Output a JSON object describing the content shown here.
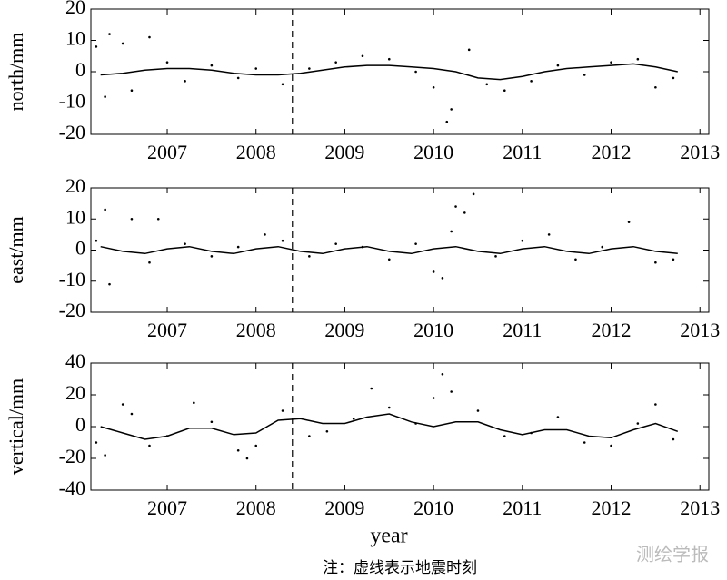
{
  "chart_data": [
    {
      "type": "scatter",
      "y_label": "north/mm",
      "xlim": [
        2006.14,
        2013.1
      ],
      "ylim": [
        -20,
        20
      ],
      "xticks": [
        2007,
        2008,
        2009,
        2010,
        2011,
        2012,
        2013
      ],
      "yticks": [
        -20,
        -10,
        0,
        10,
        20
      ],
      "event_x": 2008.41,
      "color": "#000000",
      "points": {
        "x": [
          2006.2,
          2006.3,
          2006.35,
          2006.5,
          2006.6,
          2006.8,
          2007.0,
          2007.2,
          2007.5,
          2007.8,
          2008.0,
          2008.3,
          2008.6,
          2008.9,
          2009.2,
          2009.5,
          2009.8,
          2010.0,
          2010.15,
          2010.2,
          2010.4,
          2010.6,
          2010.8,
          2011.1,
          2011.4,
          2011.7,
          2012.0,
          2012.3,
          2012.5,
          2012.7
        ],
        "y": [
          8,
          -8,
          12,
          9,
          -6,
          11,
          3,
          -3,
          2,
          -2,
          1,
          -4,
          1,
          3,
          5,
          4,
          0,
          -5,
          -16,
          -12,
          7,
          -4,
          -6,
          -3,
          2,
          -1,
          3,
          4,
          -5,
          -2
        ]
      },
      "trend": {
        "x": [
          2006.25,
          2006.5,
          2006.75,
          2007,
          2007.25,
          2007.5,
          2007.75,
          2008,
          2008.25,
          2008.5,
          2008.75,
          2009,
          2009.25,
          2009.5,
          2009.75,
          2010,
          2010.25,
          2010.5,
          2010.75,
          2011,
          2011.25,
          2011.5,
          2011.75,
          2012,
          2012.25,
          2012.5,
          2012.75
        ],
        "y": [
          -1,
          -0.5,
          0.5,
          1,
          1,
          0.5,
          -0.5,
          -1,
          -1,
          -0.5,
          0.5,
          1.5,
          2,
          2,
          1.5,
          1,
          0,
          -2,
          -2.5,
          -1.5,
          0,
          1,
          1.5,
          2,
          2.5,
          1.5,
          0
        ]
      }
    },
    {
      "type": "scatter",
      "y_label": "east/mm",
      "xlim": [
        2006.14,
        2013.1
      ],
      "ylim": [
        -20,
        20
      ],
      "xticks": [
        2007,
        2008,
        2009,
        2010,
        2011,
        2012,
        2013
      ],
      "yticks": [
        -20,
        -10,
        0,
        10,
        20
      ],
      "event_x": 2008.41,
      "color": "#000000",
      "points": {
        "x": [
          2006.2,
          2006.3,
          2006.35,
          2006.6,
          2006.8,
          2006.9,
          2007.2,
          2007.5,
          2007.8,
          2008.1,
          2008.3,
          2008.6,
          2008.9,
          2009.2,
          2009.5,
          2009.8,
          2010.0,
          2010.1,
          2010.2,
          2010.25,
          2010.35,
          2010.45,
          2010.7,
          2011.0,
          2011.3,
          2011.6,
          2011.9,
          2012.2,
          2012.5,
          2012.7
        ],
        "y": [
          3,
          13,
          -11,
          10,
          -4,
          10,
          2,
          -2,
          1,
          5,
          3,
          -2,
          2,
          1,
          -3,
          2,
          -7,
          -9,
          6,
          14,
          12,
          18,
          -2,
          3,
          5,
          -3,
          1,
          9,
          -4,
          -3
        ]
      },
      "trend": {
        "x": [
          2006.25,
          2006.5,
          2006.75,
          2007,
          2007.25,
          2007.5,
          2007.75,
          2008,
          2008.25,
          2008.5,
          2008.75,
          2009,
          2009.25,
          2009.5,
          2009.75,
          2010,
          2010.25,
          2010.5,
          2010.75,
          2011,
          2011.25,
          2011.5,
          2011.75,
          2012,
          2012.25,
          2012.5,
          2012.75
        ],
        "y": [
          1.1,
          -0.4,
          -1.1,
          0.4,
          1.1,
          -0.4,
          -1.1,
          0.4,
          1.1,
          -0.4,
          -1.1,
          0.4,
          1.1,
          -0.4,
          -1.1,
          0.4,
          1.1,
          -0.4,
          -1.1,
          0.4,
          1.1,
          -0.4,
          -1.1,
          0.4,
          1.1,
          -0.4,
          -1.1
        ]
      }
    },
    {
      "type": "scatter",
      "y_label": "vertical/mm",
      "x_label": "year",
      "xlim": [
        2006.14,
        2013.1
      ],
      "ylim": [
        -40,
        40
      ],
      "xticks": [
        2007,
        2008,
        2009,
        2010,
        2011,
        2012,
        2013
      ],
      "yticks": [
        -40,
        -20,
        0,
        20,
        40
      ],
      "event_x": 2008.41,
      "color": "#000000",
      "points": {
        "x": [
          2006.2,
          2006.3,
          2006.5,
          2006.6,
          2006.8,
          2007.0,
          2007.3,
          2007.5,
          2007.8,
          2007.9,
          2008.0,
          2008.3,
          2008.6,
          2008.8,
          2009.1,
          2009.3,
          2009.5,
          2009.8,
          2010.0,
          2010.1,
          2010.2,
          2010.5,
          2010.8,
          2011.1,
          2011.4,
          2011.7,
          2012.0,
          2012.3,
          2012.5,
          2012.7
        ],
        "y": [
          -10,
          -18,
          14,
          8,
          -12,
          -6,
          15,
          3,
          -15,
          -20,
          -12,
          10,
          -6,
          -3,
          5,
          24,
          12,
          2,
          18,
          33,
          22,
          10,
          -6,
          -4,
          6,
          -10,
          -12,
          2,
          14,
          -8
        ]
      },
      "trend": {
        "x": [
          2006.25,
          2006.5,
          2006.75,
          2007,
          2007.25,
          2007.5,
          2007.75,
          2008,
          2008.25,
          2008.5,
          2008.75,
          2009,
          2009.25,
          2009.5,
          2009.75,
          2010,
          2010.25,
          2010.5,
          2010.75,
          2011,
          2011.25,
          2011.5,
          2011.75,
          2012,
          2012.25,
          2012.5,
          2012.75
        ],
        "y": [
          0,
          -4,
          -8,
          -6,
          -1,
          -1,
          -5,
          -4,
          4,
          5,
          2,
          2,
          6,
          8,
          3,
          0,
          3,
          3,
          -2,
          -5,
          -2,
          -2,
          -6,
          -7,
          -2,
          2,
          -3
        ]
      }
    }
  ],
  "note": "注：虚线表示地震时刻",
  "watermark": "测绘学报"
}
